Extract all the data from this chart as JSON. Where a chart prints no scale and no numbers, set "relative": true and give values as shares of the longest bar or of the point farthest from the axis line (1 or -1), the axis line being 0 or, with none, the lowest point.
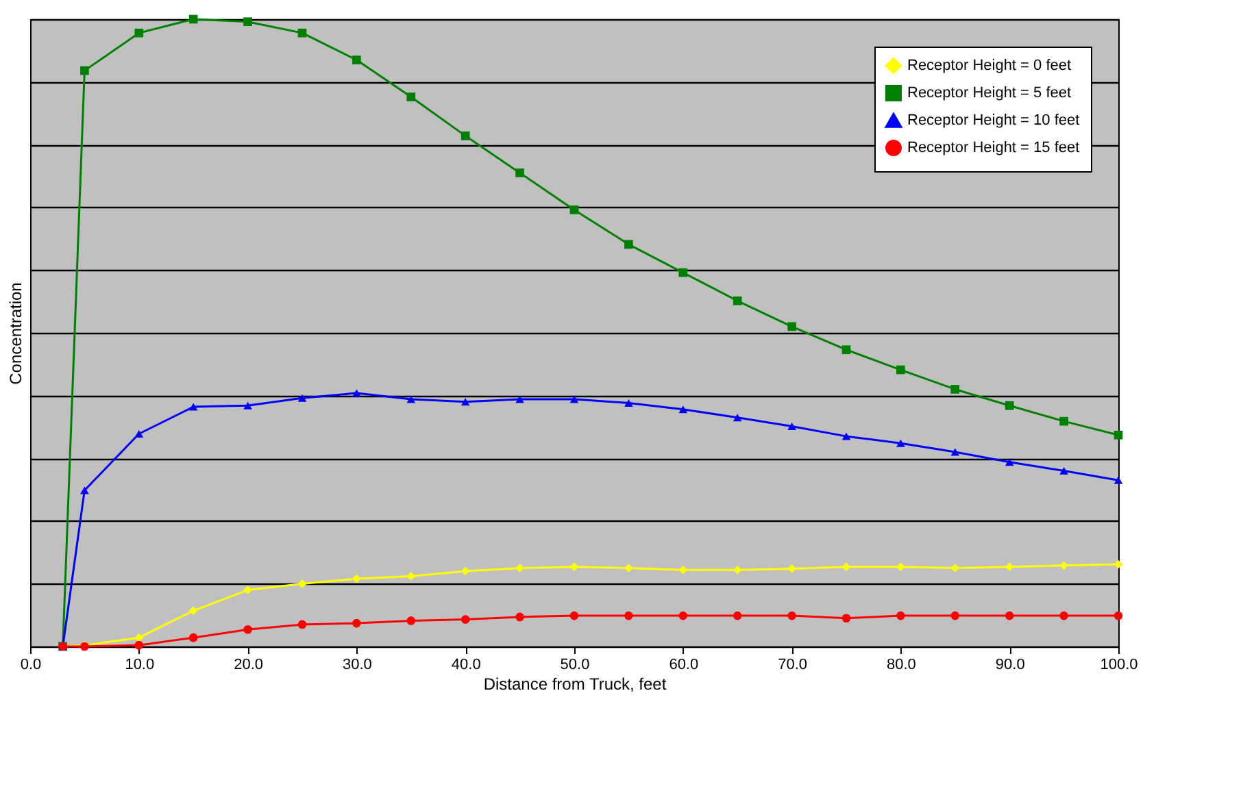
{
  "chart_data": {
    "type": "line",
    "relative": true,
    "xlabel": "Distance from Truck, feet",
    "ylabel": "Concentration",
    "x": [
      3,
      5,
      10,
      15,
      20,
      25,
      30,
      35,
      40,
      45,
      50,
      55,
      60,
      65,
      70,
      75,
      80,
      85,
      90,
      95,
      100
    ],
    "xlim": [
      0,
      100
    ],
    "xticks": [
      {
        "value": 0,
        "label": "0.0"
      },
      {
        "value": 10,
        "label": "10.0"
      },
      {
        "value": 20,
        "label": "20.0"
      },
      {
        "value": 30,
        "label": "30.0"
      },
      {
        "value": 40,
        "label": "40.0"
      },
      {
        "value": 50,
        "label": "50.0"
      },
      {
        "value": 60,
        "label": "60.0"
      },
      {
        "value": 70,
        "label": "70.0"
      },
      {
        "value": 80,
        "label": "80.0"
      },
      {
        "value": 90,
        "label": "90.0"
      },
      {
        "value": 100,
        "label": "100.0"
      }
    ],
    "grid": "y",
    "legend": "top right",
    "line_style": "solid",
    "series": [
      {
        "name": "Receptor Height = 0 feet",
        "color": "#ffff00",
        "marker": "diamond",
        "values": [
          0,
          0.002,
          0.014,
          0.057,
          0.09,
          0.1,
          0.108,
          0.112,
          0.12,
          0.125,
          0.127,
          0.125,
          0.122,
          0.122,
          0.124,
          0.127,
          0.127,
          0.125,
          0.127,
          0.129,
          0.131
        ]
      },
      {
        "name": "Receptor Height = 5 feet",
        "color": "#008000",
        "marker": "square",
        "values": [
          0,
          0.918,
          0.978,
          1.0,
          0.996,
          0.978,
          0.935,
          0.876,
          0.814,
          0.755,
          0.696,
          0.641,
          0.596,
          0.551,
          0.51,
          0.473,
          0.441,
          0.41,
          0.384,
          0.359,
          0.337
        ]
      },
      {
        "name": "Receptor Height = 10 feet",
        "color": "#0000ff",
        "marker": "triangle",
        "values": [
          0,
          0.249,
          0.339,
          0.382,
          0.384,
          0.396,
          0.404,
          0.394,
          0.39,
          0.394,
          0.394,
          0.388,
          0.378,
          0.365,
          0.351,
          0.335,
          0.324,
          0.31,
          0.294,
          0.28,
          0.265
        ]
      },
      {
        "name": "Receptor Height = 15 feet",
        "color": "#ff0000",
        "marker": "circle",
        "values": [
          0,
          0,
          0.002,
          0.014,
          0.027,
          0.035,
          0.037,
          0.041,
          0.043,
          0.047,
          0.049,
          0.049,
          0.049,
          0.049,
          0.049,
          0.045,
          0.049,
          0.049,
          0.049,
          0.049,
          0.049
        ]
      }
    ]
  }
}
